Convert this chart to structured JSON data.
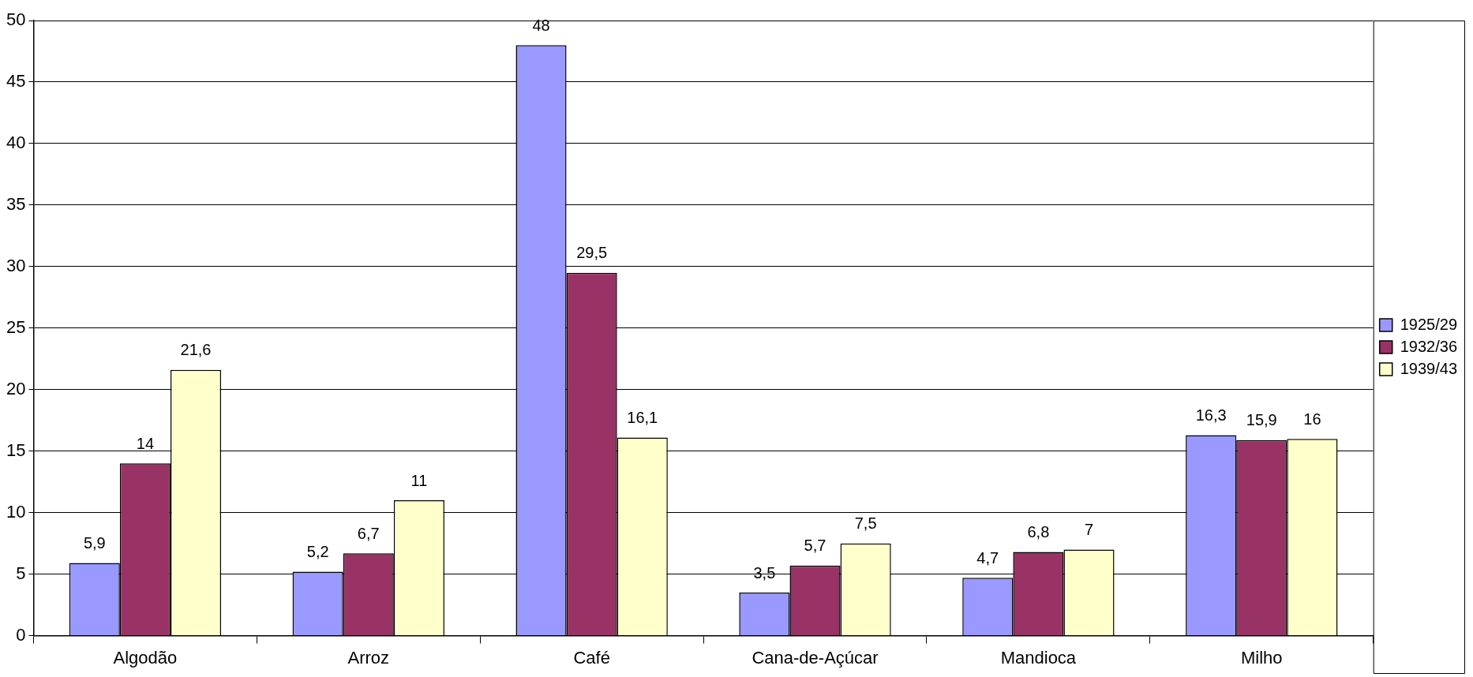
{
  "chart_data": {
    "type": "bar",
    "categories": [
      "Algodão",
      "Arroz",
      "Café",
      "Cana-de-Açúcar",
      "Mandioca",
      "Milho"
    ],
    "series": [
      {
        "name": "1925/29",
        "color": "#9999ff",
        "values": [
          5.9,
          5.2,
          48,
          3.5,
          4.7,
          16.3
        ],
        "value_labels": [
          "5,9",
          "5,2",
          "48",
          "3,5",
          "4,7",
          "16,3"
        ]
      },
      {
        "name": "1932/36",
        "color": "#993366",
        "values": [
          14,
          6.7,
          29.5,
          5.7,
          6.8,
          15.9
        ],
        "value_labels": [
          "14",
          "6,7",
          "29,5",
          "5,7",
          "6,8",
          "15,9"
        ]
      },
      {
        "name": "1939/43",
        "color": "#ffffcc",
        "values": [
          21.6,
          11,
          16.1,
          7.5,
          7,
          16
        ],
        "value_labels": [
          "21,6",
          "11",
          "16,1",
          "7,5",
          "7",
          "16"
        ]
      }
    ],
    "ylim": [
      0,
      50
    ],
    "yticks": [
      0,
      5,
      10,
      15,
      20,
      25,
      30,
      35,
      40,
      45,
      50
    ],
    "grid": "y",
    "legend": "right"
  }
}
